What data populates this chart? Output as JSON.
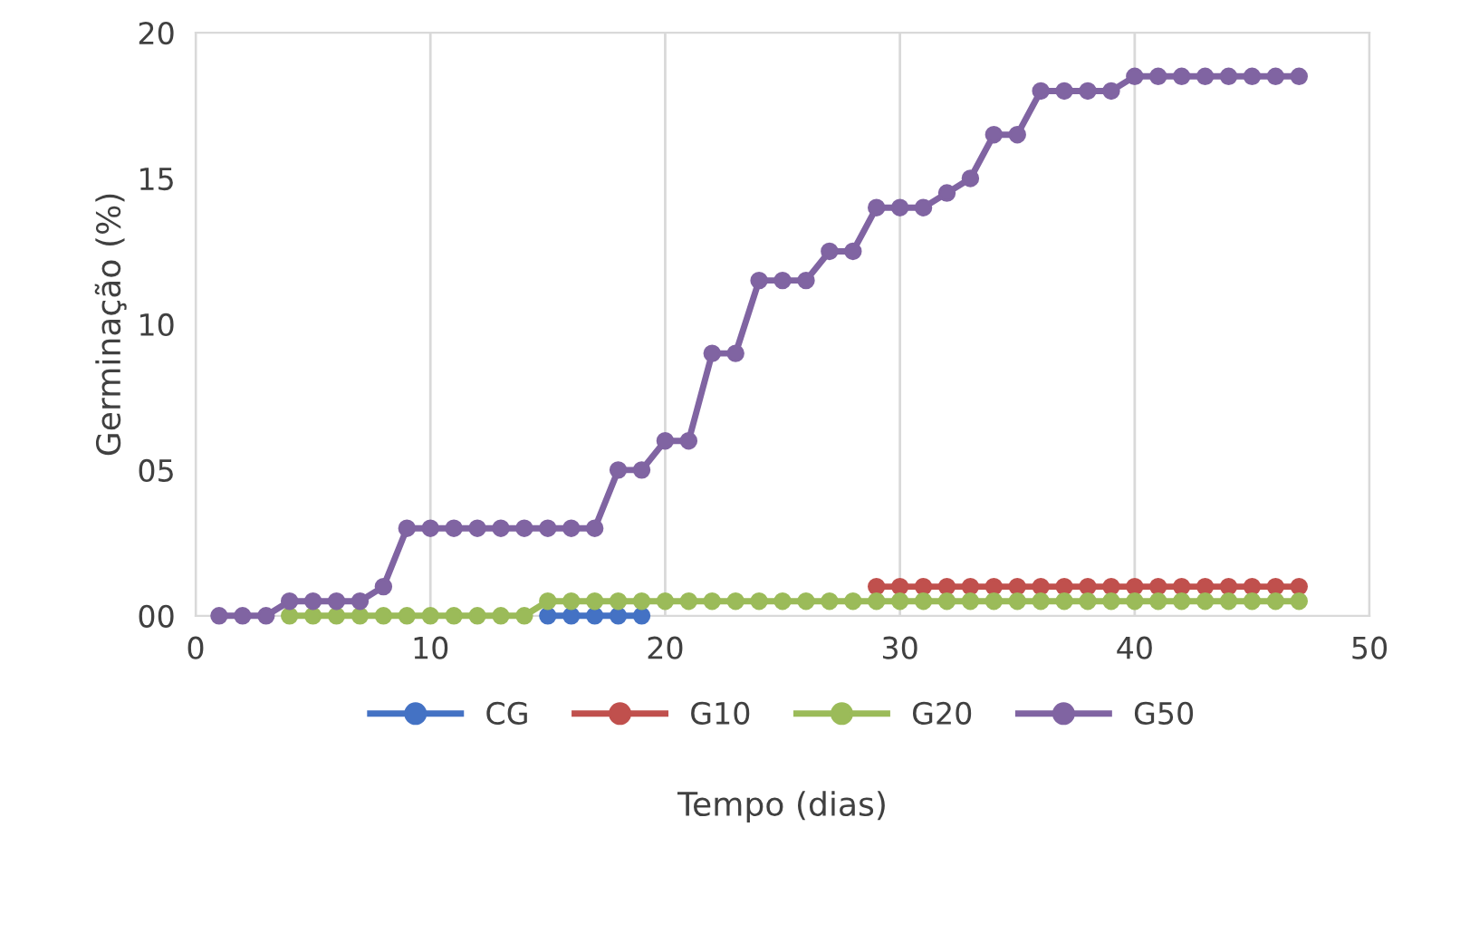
{
  "chart_data": {
    "type": "line",
    "xlabel": "Tempo (dias)",
    "ylabel": "Germinação (%)",
    "xlim": [
      0,
      50
    ],
    "xticks": [
      0,
      10,
      20,
      30,
      40,
      50
    ],
    "ylim": [
      0,
      20
    ],
    "yticks": [
      {
        "value": 0,
        "label": "00"
      },
      {
        "value": 5,
        "label": "05"
      },
      10,
      15,
      20
    ],
    "grid": "x",
    "legend": "bottom",
    "marker": "circle",
    "line_style": "solid",
    "series": [
      {
        "name": "CG",
        "color": "#4472c4",
        "x": [
          15,
          16,
          17,
          18,
          19
        ],
        "values": [
          0,
          0,
          0,
          0,
          0
        ]
      },
      {
        "name": "G10",
        "color": "#c0504d",
        "x": [
          29,
          30,
          31,
          32,
          33,
          34,
          35,
          36,
          37,
          38,
          39,
          40,
          41,
          42,
          43,
          44,
          45,
          46,
          47
        ],
        "values": [
          1,
          1,
          1,
          1,
          1,
          1,
          1,
          1,
          1,
          1,
          1,
          1,
          1,
          1,
          1,
          1,
          1,
          1,
          1
        ]
      },
      {
        "name": "G20",
        "color": "#9bbb59",
        "x": [
          4,
          5,
          6,
          7,
          8,
          9,
          10,
          11,
          12,
          13,
          14,
          15,
          16,
          17,
          18,
          19,
          20,
          21,
          22,
          23,
          24,
          25,
          26,
          27,
          28,
          29,
          30,
          31,
          32,
          33,
          34,
          35,
          36,
          37,
          38,
          39,
          40,
          41,
          42,
          43,
          44,
          45,
          46,
          47
        ],
        "values": [
          0,
          0,
          0,
          0,
          0,
          0,
          0,
          0,
          0,
          0,
          0,
          0.5,
          0.5,
          0.5,
          0.5,
          0.5,
          0.5,
          0.5,
          0.5,
          0.5,
          0.5,
          0.5,
          0.5,
          0.5,
          0.5,
          0.5,
          0.5,
          0.5,
          0.5,
          0.5,
          0.5,
          0.5,
          0.5,
          0.5,
          0.5,
          0.5,
          0.5,
          0.5,
          0.5,
          0.5,
          0.5,
          0.5,
          0.5,
          0.5
        ]
      },
      {
        "name": "G50",
        "color": "#8064a2",
        "x": [
          1,
          2,
          3,
          4,
          5,
          6,
          7,
          8,
          9,
          10,
          11,
          12,
          13,
          14,
          15,
          16,
          17,
          18,
          19,
          20,
          21,
          22,
          23,
          24,
          25,
          26,
          27,
          28,
          29,
          30,
          31,
          32,
          33,
          34,
          35,
          36,
          37,
          38,
          39,
          40,
          41,
          42,
          43,
          44,
          45,
          46,
          47
        ],
        "values": [
          0,
          0,
          0,
          0.5,
          0.5,
          0.5,
          0.5,
          1,
          3,
          3,
          3,
          3,
          3,
          3,
          3,
          3,
          3,
          5,
          5,
          6,
          6,
          9,
          9,
          11.5,
          11.5,
          11.5,
          12.5,
          12.5,
          14,
          14,
          14,
          14.5,
          15,
          16.5,
          16.5,
          18,
          18,
          18,
          18,
          18.5,
          18.5,
          18.5,
          18.5,
          18.5,
          18.5,
          18.5,
          18.5
        ]
      }
    ]
  }
}
